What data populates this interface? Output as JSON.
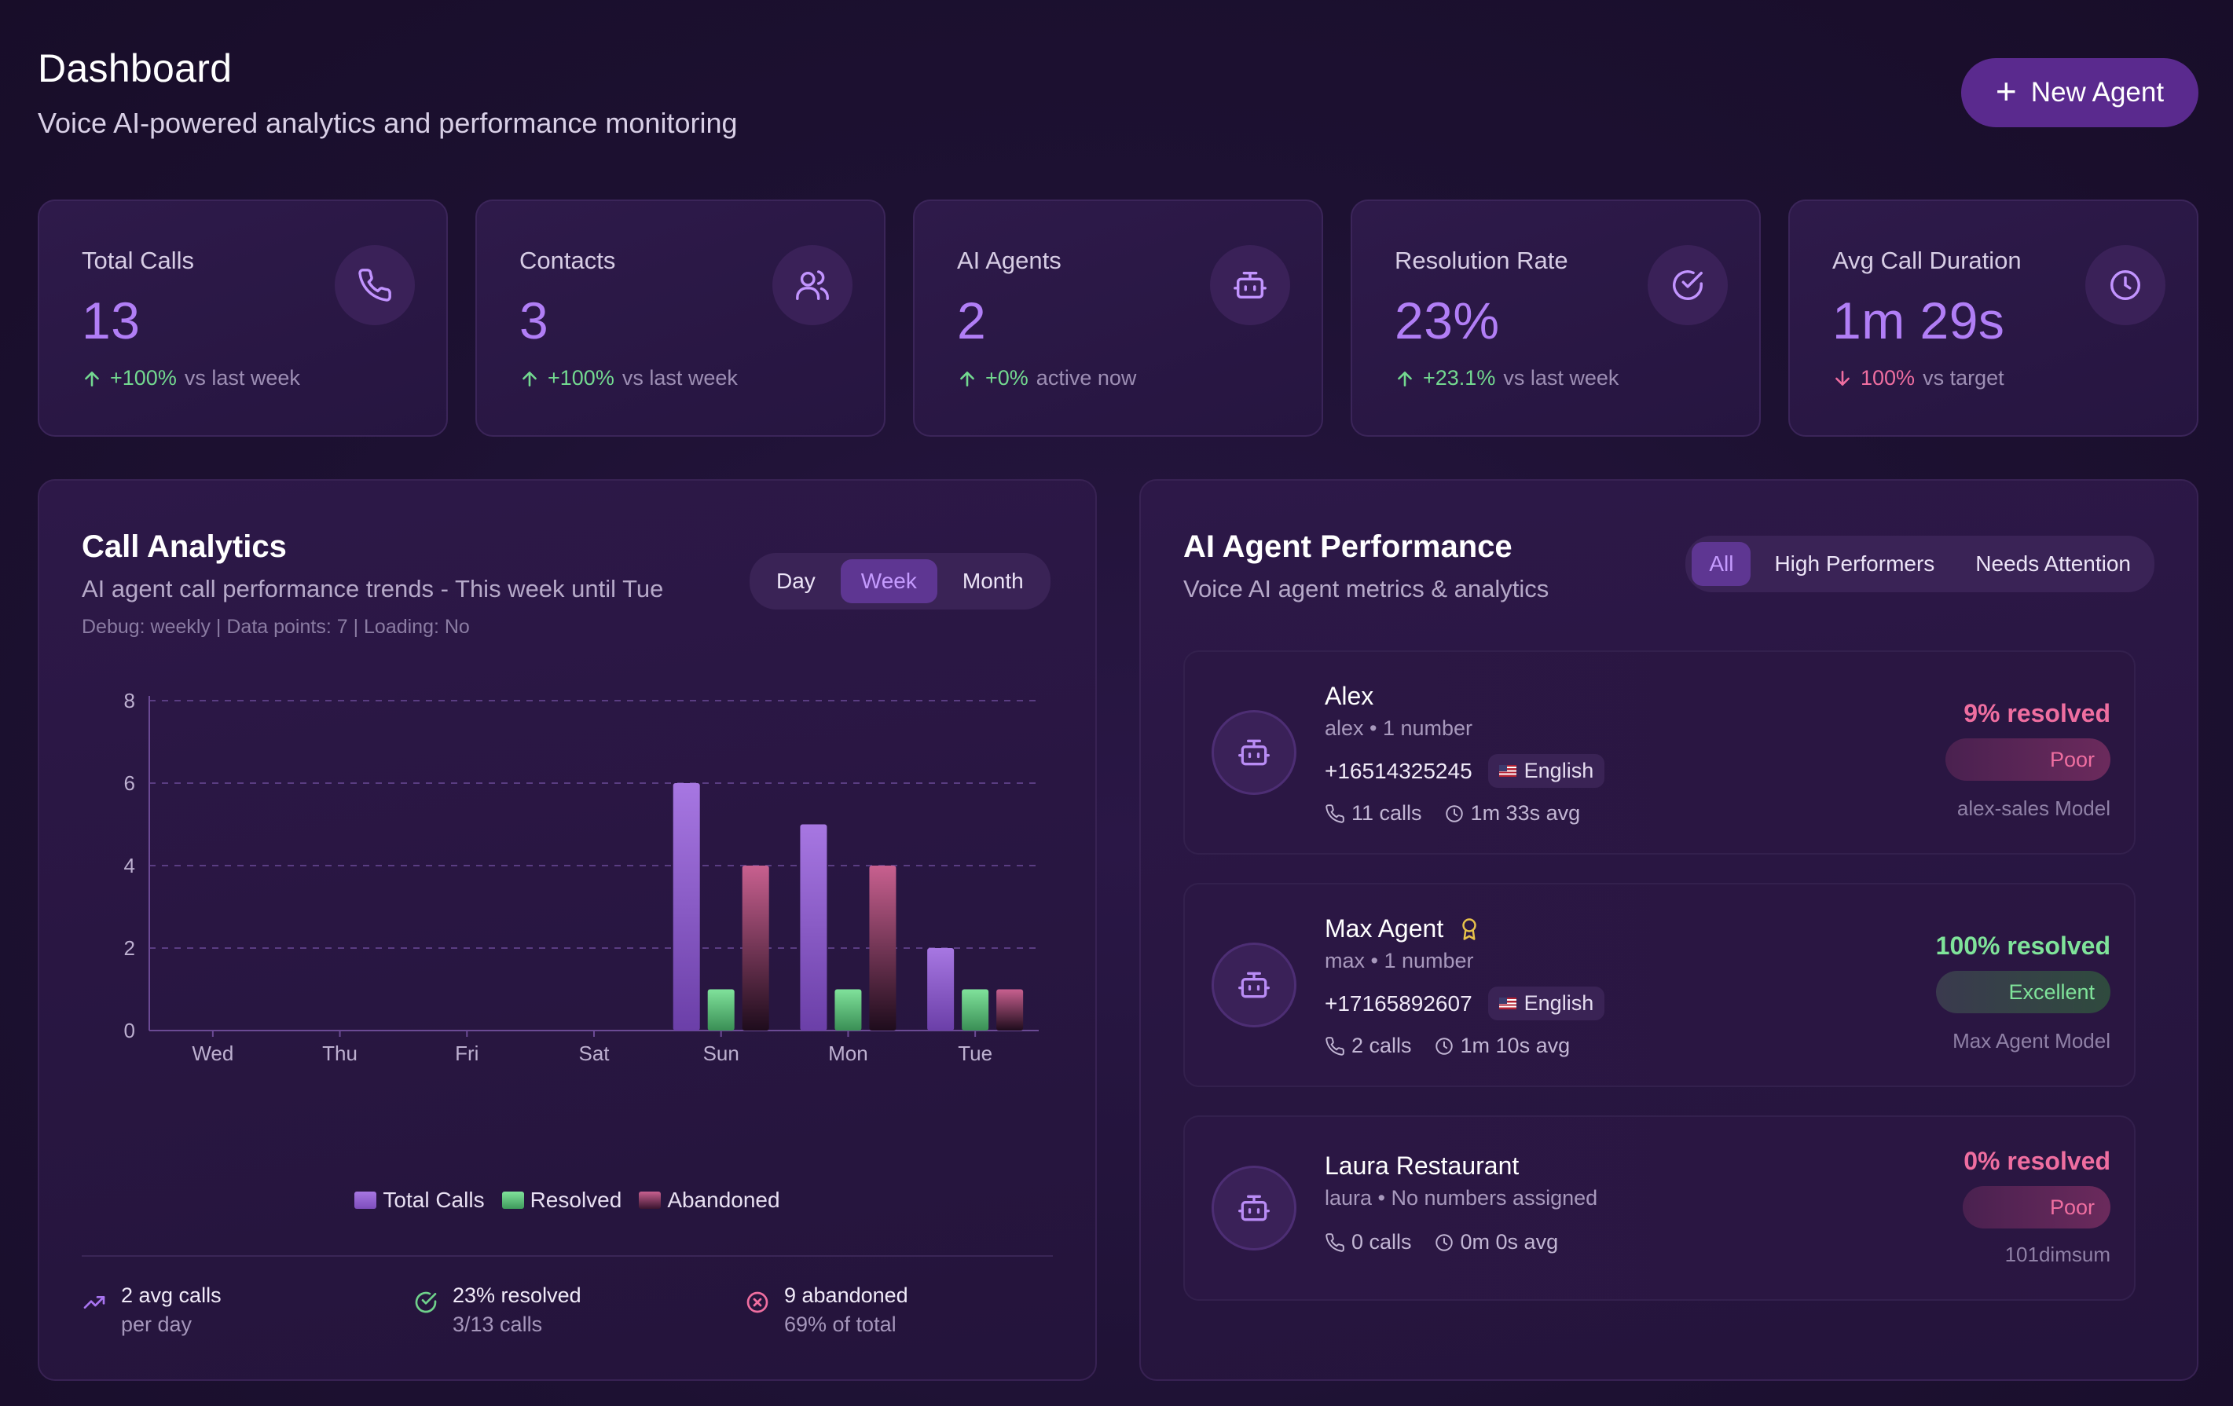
{
  "header": {
    "title": "Dashboard",
    "subtitle": "Voice AI-powered analytics and performance monitoring",
    "new_agent_label": "New Agent"
  },
  "stats": [
    {
      "label": "Total Calls",
      "value": "13",
      "trend_value": "+100%",
      "trend_text": "vs last week",
      "icon": "phone-icon"
    },
    {
      "label": "Contacts",
      "value": "3",
      "trend_value": "+100%",
      "trend_text": "vs last week",
      "icon": "users-icon"
    },
    {
      "label": "AI Agents",
      "value": "2",
      "trend_value": "+0%",
      "trend_text": "active now",
      "icon": "robot-icon"
    },
    {
      "label": "Resolution Rate",
      "value": "23%",
      "trend_value": "+23.1%",
      "trend_text": "vs last week",
      "icon": "check-circle-icon"
    },
    {
      "label": "Avg Call Duration",
      "value": "1m 29s",
      "trend_value": "100%",
      "trend_text": "vs target",
      "icon": "clock-icon"
    }
  ],
  "analytics": {
    "title": "Call Analytics",
    "subtitle": "AI agent call performance trends - This week until Tue",
    "debug": "Debug: weekly | Data points: 7 | Loading: No",
    "periods": [
      "Day",
      "Week",
      "Month"
    ],
    "active_period": "Week",
    "summary": [
      {
        "main": "2 avg calls",
        "sub": "per day"
      },
      {
        "main": "23% resolved",
        "sub": "3/13 calls"
      },
      {
        "main": "9 abandoned",
        "sub": "69% of total"
      }
    ]
  },
  "chart_data": {
    "type": "bar",
    "categories": [
      "Wed",
      "Thu",
      "Fri",
      "Sat",
      "Sun",
      "Mon",
      "Tue"
    ],
    "series": [
      {
        "name": "Total Calls",
        "values": [
          0,
          0,
          0,
          0,
          6,
          5,
          2
        ],
        "color": "#9a66d8"
      },
      {
        "name": "Resolved",
        "values": [
          0,
          0,
          0,
          0,
          1,
          1,
          1
        ],
        "color": "#6fd18b"
      },
      {
        "name": "Abandoned",
        "values": [
          0,
          0,
          0,
          0,
          4,
          4,
          1
        ],
        "color": "#c05b8c"
      }
    ],
    "ylim": [
      0,
      8
    ],
    "yticks": [
      "0",
      "2",
      "4",
      "6",
      "8"
    ],
    "grid": true,
    "legend": "bottom-center"
  },
  "agents_panel": {
    "title": "AI Agent Performance",
    "subtitle": "Voice AI agent metrics & analytics",
    "tabs": [
      "All",
      "High Performers",
      "Needs Attention"
    ],
    "active_tab": "All",
    "agents": [
      {
        "name": "Alex",
        "meta": "alex • 1 number",
        "phone": "+16514325245",
        "language": "English",
        "calls": "11 calls",
        "avg": "1m 33s avg",
        "resolved": "9% resolved",
        "badge": "Poor",
        "model": "alex-sales Model",
        "status_color": "#ef6ea0"
      },
      {
        "name": "Max Agent",
        "meta": "max • 1 number",
        "phone": "+17165892607",
        "language": "English",
        "calls": "2 calls",
        "avg": "1m 10s avg",
        "resolved": "100% resolved",
        "badge": "Excellent",
        "model": "Max Agent Model",
        "status_color": "#7fe39a"
      },
      {
        "name": "Laura Restaurant",
        "meta": "laura • No numbers assigned",
        "calls": "0 calls",
        "avg": "0m 0s avg",
        "resolved": "0% resolved",
        "badge": "Poor",
        "model": "101dimsum",
        "status_color": "#ef6ea0"
      }
    ]
  }
}
